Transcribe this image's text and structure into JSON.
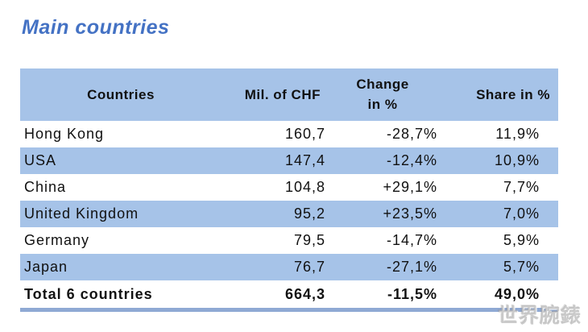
{
  "title": "Main countries",
  "table": {
    "headers": {
      "countries": "Countries",
      "mil_chf": "Mil. of CHF",
      "change_line1": "Change",
      "change_line2": "in %",
      "share": "Share in %"
    },
    "rows": [
      {
        "country": "Hong Kong",
        "mil_chf": "160,7",
        "change": "-28,7%",
        "share": "11,9%"
      },
      {
        "country": "USA",
        "mil_chf": "147,4",
        "change": "-12,4%",
        "share": "10,9%"
      },
      {
        "country": "China",
        "mil_chf": "104,8",
        "change": "+29,1%",
        "share": "7,7%"
      },
      {
        "country": "United Kingdom",
        "mil_chf": "95,2",
        "change": "+23,5%",
        "share": "7,0%"
      },
      {
        "country": "Germany",
        "mil_chf": "79,5",
        "change": "-14,7%",
        "share": "5,9%"
      },
      {
        "country": "Japan",
        "mil_chf": "76,7",
        "change": "-27,1%",
        "share": "5,7%"
      }
    ],
    "total": {
      "country": "Total 6 countries",
      "mil_chf": "664,3",
      "change": "-11,5%",
      "share": "49,0%"
    }
  },
  "watermark": "世界腕錶",
  "colors": {
    "title_blue": "#4472c4",
    "row_stripe_blue": "#a6c3e8",
    "bottom_border_blue": "#8fa9d4",
    "text": "#111111"
  },
  "chart_data": {
    "type": "table",
    "title": "Main countries",
    "columns": [
      "Countries",
      "Mil. of CHF",
      "Change in %",
      "Share in %"
    ],
    "rows": [
      [
        "Hong Kong",
        "160,7",
        "-28,7%",
        "11,9%"
      ],
      [
        "USA",
        "147,4",
        "-12,4%",
        "10,9%"
      ],
      [
        "China",
        "104,8",
        "+29,1%",
        "7,7%"
      ],
      [
        "United Kingdom",
        "95,2",
        "+23,5%",
        "7,0%"
      ],
      [
        "Germany",
        "79,5",
        "-14,7%",
        "5,9%"
      ],
      [
        "Japan",
        "76,7",
        "-27,1%",
        "5,7%"
      ],
      [
        "Total 6 countries",
        "664,3",
        "-11,5%",
        "49,0%"
      ]
    ]
  }
}
